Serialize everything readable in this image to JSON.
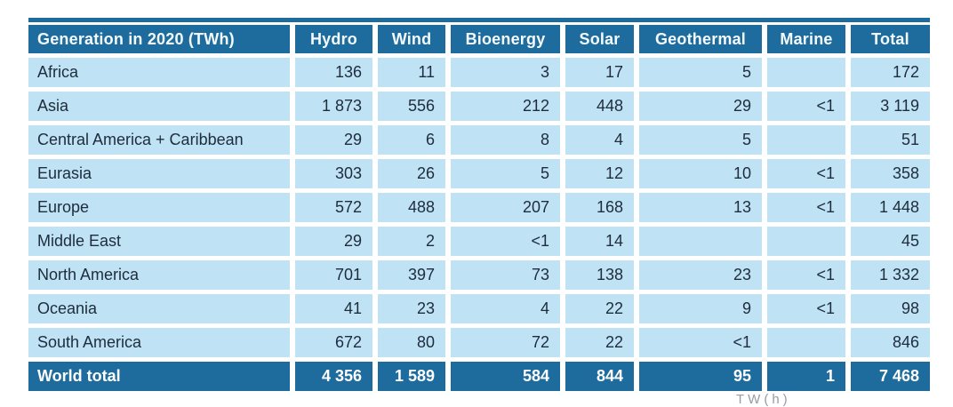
{
  "colors": {
    "header_bg": "#1e6c9e",
    "row_bg": "#bfe2f4",
    "text_dark": "#1e2c3c",
    "header_text": "#ffffff"
  },
  "chart_data": {
    "type": "table",
    "title": "Generation in 2020 (TWh)",
    "columns": [
      "Hydro",
      "Wind",
      "Bioenergy",
      "Solar",
      "Geothermal",
      "Marine",
      "Total"
    ],
    "rows": [
      {
        "region": "Africa",
        "values": [
          "136",
          "11",
          "3",
          "17",
          "5",
          "",
          "172"
        ]
      },
      {
        "region": "Asia",
        "values": [
          "1 873",
          "556",
          "212",
          "448",
          "29",
          "<1",
          "3 119"
        ]
      },
      {
        "region": "Central America + Caribbean",
        "values": [
          "29",
          "6",
          "8",
          "4",
          "5",
          "",
          "51"
        ]
      },
      {
        "region": "Eurasia",
        "values": [
          "303",
          "26",
          "5",
          "12",
          "10",
          "<1",
          "358"
        ]
      },
      {
        "region": "Europe",
        "values": [
          "572",
          "488",
          "207",
          "168",
          "13",
          "<1",
          "1 448"
        ]
      },
      {
        "region": "Middle East",
        "values": [
          "29",
          "2",
          "<1",
          "14",
          "",
          "",
          "45"
        ]
      },
      {
        "region": "North America",
        "values": [
          "701",
          "397",
          "73",
          "138",
          "23",
          "<1",
          "1 332"
        ]
      },
      {
        "region": "Oceania",
        "values": [
          "41",
          "23",
          "4",
          "22",
          "9",
          "<1",
          "98"
        ]
      },
      {
        "region": "South America",
        "values": [
          "672",
          "80",
          "72",
          "22",
          "<1",
          "",
          "846"
        ]
      }
    ],
    "total_row": {
      "region": "World total",
      "values": [
        "4 356",
        "1 589",
        "584",
        "844",
        "95",
        "1",
        "7 468"
      ]
    }
  },
  "footer": {
    "fragment": "TW(h)"
  }
}
